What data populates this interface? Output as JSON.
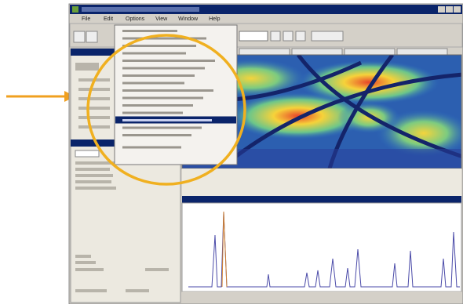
{
  "window": {
    "menu": [
      "File",
      "Edit",
      "Options",
      "View",
      "Window",
      "Help"
    ]
  }
}
